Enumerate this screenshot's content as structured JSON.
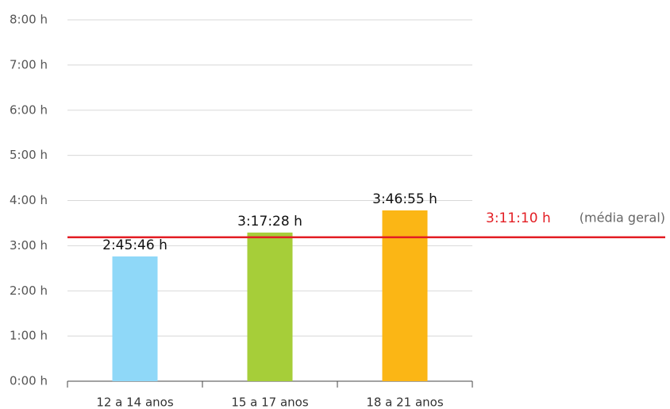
{
  "chart_data": {
    "type": "bar",
    "categories": [
      "12 a 14 anos",
      "15 a 17 anos",
      "18 a 21 anos"
    ],
    "values": [
      2.762778,
      3.291111,
      3.781944
    ],
    "value_labels": [
      "2:45:46 h",
      "3:17:28 h",
      "3:46:55 h"
    ],
    "colors": [
      "#8fd8f8",
      "#a6ce39",
      "#fbb615"
    ],
    "ylim": [
      0,
      8
    ],
    "yticks": [
      {
        "value": 0,
        "label": "0:00 h"
      },
      {
        "value": 1,
        "label": "1:00 h"
      },
      {
        "value": 2,
        "label": "2:00 h"
      },
      {
        "value": 3,
        "label": "3:00 h"
      },
      {
        "value": 4,
        "label": "4:00 h"
      },
      {
        "value": 5,
        "label": "5:00 h"
      },
      {
        "value": 6,
        "label": "6:00 h"
      },
      {
        "value": 7,
        "label": "7:00 h"
      },
      {
        "value": 8,
        "label": "8:00 h"
      }
    ],
    "grid": true,
    "reference_line": {
      "value": 3.186111,
      "value_label": "3:11:10 h",
      "label": "(média geral)",
      "color": "#e31e24"
    }
  }
}
